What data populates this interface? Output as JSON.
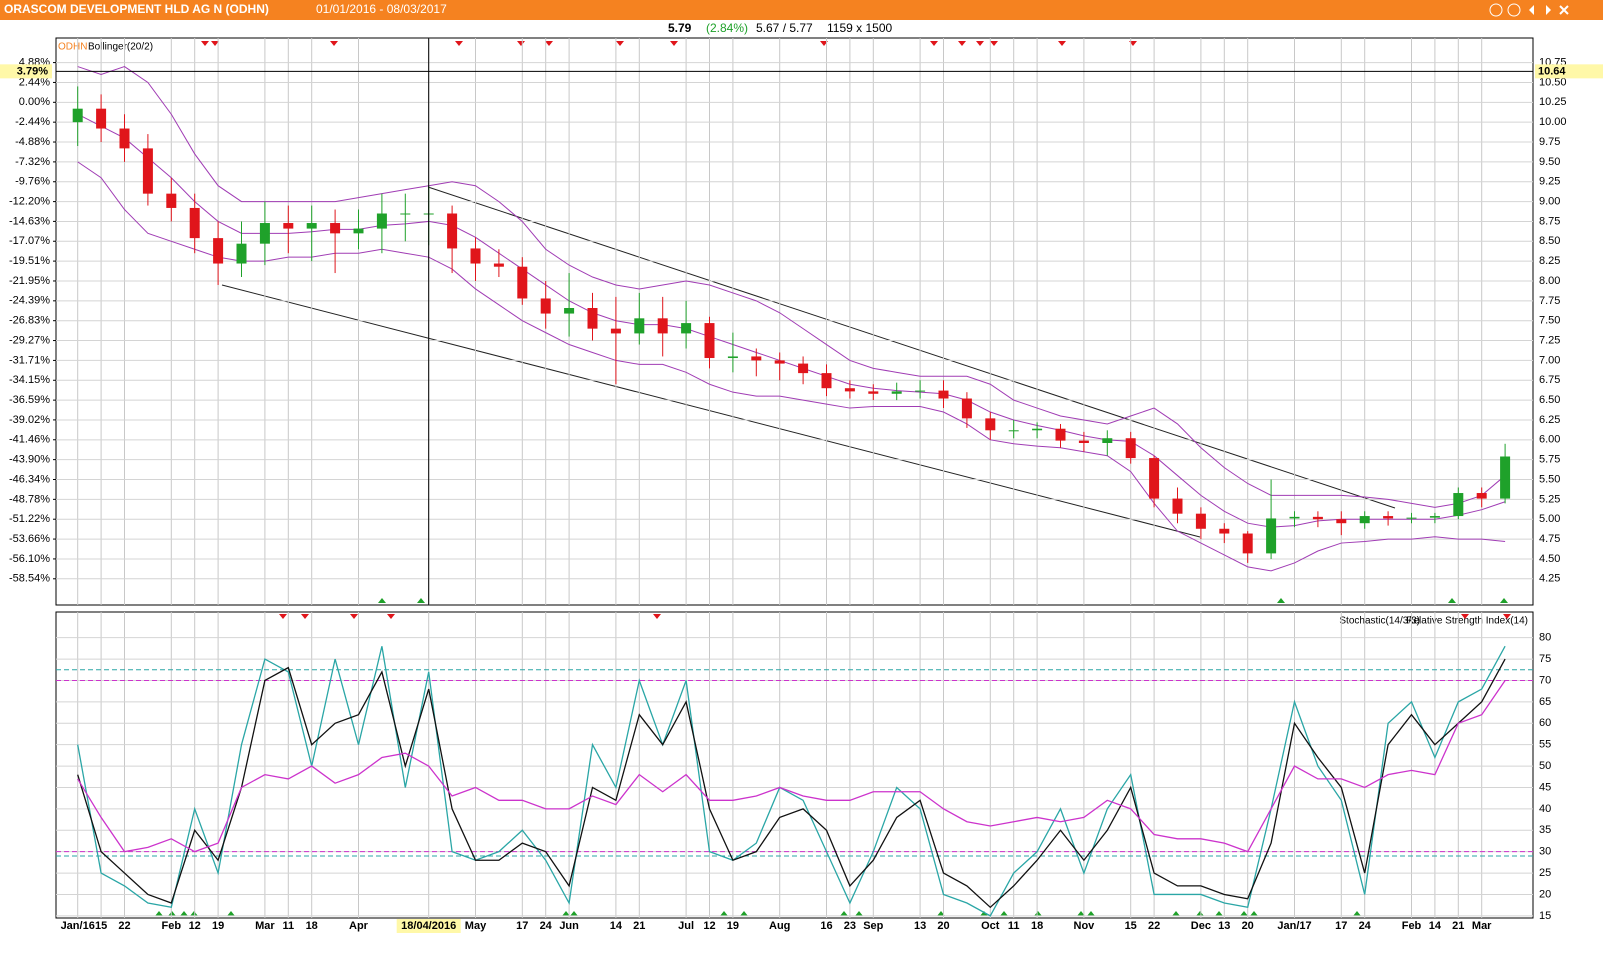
{
  "header": {
    "title": "ORASCOM DEVELOPMENT HLD AG N (ODHN)",
    "range": "01/01/2016 - 08/03/2017",
    "last": "5.79",
    "change": "(2.84%)",
    "bid_ask": "5.67 / 5.77",
    "size": "1159 x 1500"
  },
  "chart_data": [
    {
      "type": "candlestick",
      "symbol": "ODHN",
      "indicator": "Bollinger(20/2)",
      "categories": [
        "Jan/16",
        "15",
        "22",
        null,
        "Feb",
        "12",
        "19",
        null,
        "Mar",
        "11",
        "18",
        null,
        "Apr",
        null,
        null,
        "18/04/2016",
        null,
        "May",
        null,
        "17",
        "24",
        "Jun",
        null,
        "14",
        "21",
        null,
        "Jul",
        "12",
        "19",
        null,
        "Aug",
        null,
        "16",
        "23",
        "Sep",
        null,
        "13",
        "20",
        null,
        "Oct",
        "11",
        "18",
        null,
        "Nov",
        null,
        "15",
        "22",
        null,
        "Dec",
        "13",
        "20",
        null,
        "Jan/17",
        null,
        "17",
        "24",
        null,
        "Feb",
        "14",
        "21",
        "Mar",
        null
      ],
      "open": [
        10.0,
        10.17,
        9.92,
        9.67,
        9.1,
        8.92,
        8.54,
        8.22,
        8.47,
        8.73,
        8.66,
        8.73,
        8.6,
        8.66,
        8.85,
        8.85,
        8.85,
        8.41,
        8.22,
        8.18,
        7.78,
        7.59,
        7.66,
        7.4,
        7.34,
        7.53,
        7.34,
        7.47,
        7.03,
        7.05,
        7.0,
        6.96,
        6.84,
        6.65,
        6.61,
        6.58,
        6.61,
        6.62,
        6.52,
        6.27,
        6.12,
        6.12,
        6.14,
        5.99,
        5.96,
        6.02,
        5.77,
        5.26,
        5.07,
        4.88,
        4.82,
        4.57,
        5.01,
        5.03,
        5.0,
        4.95,
        5.04,
        5.01,
        5.02,
        5.04,
        5.33,
        5.26
      ],
      "high": [
        10.45,
        10.35,
        10.1,
        9.85,
        9.3,
        9.1,
        8.75,
        8.75,
        9.0,
        8.95,
        8.95,
        8.9,
        8.9,
        9.1,
        9.1,
        9.2,
        8.95,
        8.55,
        8.4,
        8.3,
        8.0,
        8.1,
        7.85,
        7.8,
        7.85,
        7.8,
        7.75,
        7.55,
        7.35,
        7.15,
        7.1,
        7.05,
        6.95,
        6.75,
        6.7,
        6.72,
        6.75,
        6.75,
        6.6,
        6.35,
        6.25,
        6.22,
        6.2,
        6.1,
        6.12,
        6.1,
        5.8,
        5.4,
        5.15,
        4.95,
        4.85,
        5.5,
        5.1,
        5.1,
        5.1,
        5.1,
        5.1,
        5.08,
        5.08,
        5.4,
        5.4,
        5.95
      ],
      "low": [
        9.7,
        9.75,
        9.5,
        8.95,
        8.75,
        8.35,
        7.95,
        8.05,
        8.2,
        8.35,
        8.25,
        8.1,
        8.4,
        8.35,
        8.5,
        8.45,
        8.1,
        8.0,
        8.05,
        7.7,
        7.4,
        7.3,
        7.25,
        6.7,
        7.2,
        7.05,
        7.15,
        6.9,
        6.85,
        6.8,
        6.75,
        6.7,
        6.55,
        6.52,
        6.5,
        6.5,
        6.52,
        6.4,
        6.15,
        6.0,
        6.02,
        6.02,
        5.9,
        5.85,
        5.8,
        5.7,
        5.15,
        4.95,
        4.75,
        4.7,
        4.45,
        4.5,
        4.9,
        4.9,
        4.8,
        4.88,
        4.92,
        4.95,
        4.95,
        5.0,
        5.15,
        5.2
      ],
      "close": [
        10.17,
        9.92,
        9.67,
        9.1,
        8.92,
        8.54,
        8.22,
        8.47,
        8.73,
        8.66,
        8.73,
        8.6,
        8.66,
        8.85,
        8.85,
        8.85,
        8.41,
        8.22,
        8.18,
        7.78,
        7.59,
        7.66,
        7.4,
        7.34,
        7.53,
        7.34,
        7.47,
        7.03,
        7.05,
        7.0,
        6.96,
        6.84,
        6.65,
        6.61,
        6.58,
        6.61,
        6.62,
        6.52,
        6.27,
        6.12,
        6.12,
        6.14,
        5.99,
        5.96,
        6.02,
        5.77,
        5.26,
        5.07,
        4.88,
        4.82,
        4.57,
        5.01,
        5.03,
        5.0,
        4.95,
        5.04,
        5.01,
        5.02,
        5.04,
        5.33,
        5.26,
        5.79
      ],
      "up_color": "#1fa12a",
      "down_color": "#e0151b",
      "bands": {
        "color": "#a03cb4",
        "upper": [
          10.7,
          10.6,
          10.7,
          10.5,
          10.1,
          9.6,
          9.2,
          9.0,
          9.0,
          9.0,
          9.0,
          9.0,
          9.05,
          9.1,
          9.15,
          9.2,
          9.25,
          9.2,
          9.0,
          8.75,
          8.4,
          8.2,
          8.05,
          7.95,
          7.9,
          7.95,
          8.0,
          7.95,
          7.85,
          7.75,
          7.6,
          7.4,
          7.2,
          7.0,
          6.9,
          6.85,
          6.8,
          6.8,
          6.8,
          6.7,
          6.5,
          6.4,
          6.3,
          6.25,
          6.2,
          6.3,
          6.4,
          6.2,
          5.9,
          5.65,
          5.45,
          5.3,
          5.3,
          5.3,
          5.3,
          5.28,
          5.25,
          5.2,
          5.15,
          5.2,
          5.3,
          5.55
        ],
        "middle": [
          10.1,
          9.95,
          9.8,
          9.55,
          9.3,
          9.0,
          8.75,
          8.6,
          8.6,
          8.6,
          8.62,
          8.65,
          8.65,
          8.7,
          8.72,
          8.75,
          8.7,
          8.55,
          8.35,
          8.15,
          7.95,
          7.75,
          7.6,
          7.5,
          7.45,
          7.45,
          7.4,
          7.3,
          7.2,
          7.1,
          7.0,
          6.9,
          6.8,
          6.7,
          6.65,
          6.62,
          6.6,
          6.58,
          6.5,
          6.35,
          6.25,
          6.18,
          6.12,
          6.05,
          6.0,
          5.98,
          5.8,
          5.55,
          5.3,
          5.1,
          4.95,
          4.9,
          4.92,
          4.98,
          5.0,
          5.0,
          5.0,
          5.0,
          5.0,
          5.05,
          5.12,
          5.22
        ],
        "lower": [
          9.5,
          9.3,
          8.9,
          8.6,
          8.5,
          8.4,
          8.3,
          8.25,
          8.25,
          8.3,
          8.3,
          8.35,
          8.35,
          8.4,
          8.35,
          8.3,
          8.15,
          7.9,
          7.7,
          7.5,
          7.35,
          7.2,
          7.1,
          7.0,
          6.95,
          6.95,
          6.85,
          6.7,
          6.6,
          6.55,
          6.55,
          6.5,
          6.45,
          6.4,
          6.42,
          6.42,
          6.42,
          6.35,
          6.2,
          6.0,
          5.95,
          5.92,
          5.9,
          5.85,
          5.8,
          5.6,
          5.2,
          4.85,
          4.7,
          4.55,
          4.4,
          4.35,
          4.45,
          4.6,
          4.7,
          4.72,
          4.75,
          4.75,
          4.78,
          4.75,
          4.75,
          4.72
        ]
      },
      "ylim": [
        3.92,
        11.06
      ],
      "yticks": [
        4.25,
        {
          "value": 4.5,
          "label": "4.50"
        },
        4.75,
        {
          "value": 5,
          "label": "5.00"
        },
        5.25,
        {
          "value": 5.5,
          "label": "5.50"
        },
        5.75,
        {
          "value": 6,
          "label": "6.00"
        },
        6.25,
        {
          "value": 6.5,
          "label": "6.50"
        },
        6.75,
        {
          "value": 7,
          "label": "7.00"
        },
        7.25,
        {
          "value": 7.5,
          "label": "7.50"
        },
        7.75,
        {
          "value": 8,
          "label": "8.00"
        },
        8.25,
        {
          "value": 8.5,
          "label": "8.50"
        },
        8.75,
        {
          "value": 9,
          "label": "9.00"
        },
        9.25,
        {
          "value": 9.5,
          "label": "9.50"
        },
        9.75,
        {
          "value": 10,
          "label": "10.00"
        },
        10.25,
        {
          "value": 10.5,
          "label": "10.50"
        },
        10.75
      ],
      "y2lim": [
        -61.76,
        7.9
      ],
      "y2ticks": [
        {
          "value": 4.88,
          "label": "4.88%"
        },
        {
          "value": 2.44,
          "label": "2.44%"
        },
        {
          "value": 0,
          "label": "0.00%"
        },
        {
          "value": -2.44,
          "label": "-2.44%"
        },
        {
          "value": -4.88,
          "label": "-4.88%"
        },
        {
          "value": -7.32,
          "label": "-7.32%"
        },
        {
          "value": -9.76,
          "label": "-9.76%"
        },
        {
          "value": -12.2,
          "label": "-12.20%"
        },
        {
          "value": -14.63,
          "label": "-14.63%"
        },
        {
          "value": -17.07,
          "label": "-17.07%"
        },
        {
          "value": -19.51,
          "label": "-19.51%"
        },
        {
          "value": -21.95,
          "label": "-21.95%"
        },
        {
          "value": -24.39,
          "label": "-24.39%"
        },
        {
          "value": -26.83,
          "label": "-26.83%"
        },
        {
          "value": -29.27,
          "label": "-29.27%"
        },
        {
          "value": -31.71,
          "label": "-31.71%"
        },
        {
          "value": -34.15,
          "label": "-34.15%"
        },
        {
          "value": -36.59,
          "label": "-36.59%"
        },
        {
          "value": -39.02,
          "label": "-39.02%"
        },
        {
          "value": -41.46,
          "label": "-41.46%"
        },
        {
          "value": -43.9,
          "label": "-43.90%"
        },
        {
          "value": -46.34,
          "label": "-46.34%"
        },
        {
          "value": -48.78,
          "label": "-48.78%"
        },
        {
          "value": -51.22,
          "label": "-51.22%"
        },
        {
          "value": -53.66,
          "label": "-53.66%"
        },
        {
          "value": -56.1,
          "label": "-56.10%"
        },
        {
          "value": -58.54,
          "label": "-58.54%"
        }
      ],
      "grid": true,
      "crosshair": {
        "y": 10.64,
        "y2": {
          "value": 3.79,
          "label": "3.79%"
        }
      }
    },
    {
      "type": "line",
      "indicators": [
        "Stochastic(14/3/3)",
        "Relative Strength Index(14)"
      ],
      "series": [
        {
          "color": "#2aa6a6",
          "values": [
            55,
            25,
            22,
            18,
            17,
            40,
            25,
            55,
            75,
            72,
            50,
            75,
            55,
            78,
            45,
            72,
            30,
            28,
            30,
            35,
            28,
            18,
            55,
            45,
            70,
            55,
            70,
            30,
            28,
            32,
            45,
            42,
            30,
            18,
            30,
            45,
            40,
            20,
            18,
            15,
            25,
            30,
            40,
            25,
            40,
            48,
            20,
            20,
            20,
            18,
            17,
            40,
            65,
            50,
            42,
            20,
            60,
            65,
            52,
            65,
            68,
            78
          ]
        },
        {
          "color": "#111111",
          "values": [
            48,
            30,
            25,
            20,
            18,
            35,
            28,
            45,
            70,
            73,
            55,
            60,
            62,
            72,
            50,
            68,
            40,
            28,
            28,
            32,
            30,
            22,
            45,
            42,
            62,
            55,
            65,
            40,
            28,
            30,
            38,
            40,
            35,
            22,
            28,
            38,
            42,
            25,
            22,
            17,
            22,
            28,
            35,
            28,
            35,
            45,
            25,
            22,
            22,
            20,
            19,
            32,
            60,
            52,
            45,
            25,
            55,
            62,
            55,
            60,
            65,
            75
          ]
        },
        {
          "color": "#cc33cc",
          "values": [
            47,
            38,
            30,
            31,
            33,
            30,
            32,
            45,
            48,
            47,
            50,
            46,
            48,
            52,
            53,
            50,
            43,
            45,
            42,
            42,
            40,
            40,
            43,
            41,
            48,
            44,
            48,
            42,
            42,
            43,
            45,
            43,
            42,
            42,
            44,
            44,
            44,
            40,
            37,
            36,
            37,
            38,
            37,
            38,
            42,
            40,
            34,
            33,
            33,
            32,
            30,
            40,
            50,
            47,
            47,
            45,
            48,
            49,
            48,
            60,
            62,
            70
          ]
        }
      ],
      "ref_lines": [
        {
          "value": 72.5,
          "color": "#2aa6a6"
        },
        {
          "value": 70,
          "color": "#cc33cc"
        },
        {
          "value": 30,
          "color": "#cc33cc"
        },
        {
          "value": 29,
          "color": "#2aa6a6"
        }
      ],
      "ylim": [
        14.5,
        86
      ],
      "yticks": [
        15,
        20,
        25,
        30,
        35,
        40,
        45,
        50,
        55,
        60,
        65,
        70,
        75,
        80
      ],
      "grid": true
    }
  ]
}
